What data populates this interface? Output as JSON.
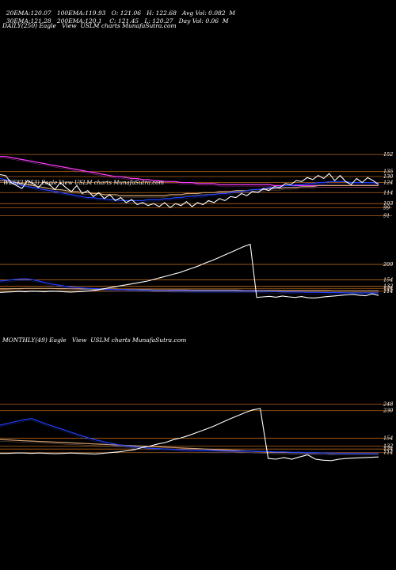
{
  "header": {
    "row1": [
      {
        "label": "20EMA:",
        "value": "120.07"
      },
      {
        "label": "100EMA:",
        "value": "119.93"
      },
      {
        "label": "O:",
        "value": "121.06"
      },
      {
        "label": "H:",
        "value": "122.68"
      },
      {
        "label": "Avg Vol:",
        "value": "0.082"
      },
      {
        "label": "",
        "value": "M"
      }
    ],
    "row2": [
      {
        "label": "30EMA:",
        "value": "121.28"
      },
      {
        "label": "200EMA:",
        "value": "120.1"
      },
      {
        "label": "C:",
        "value": "121.45"
      },
      {
        "label": "L:",
        "value": "120.27"
      },
      {
        "label": "Day Vol:",
        "value": "0.06"
      },
      {
        "label": "",
        "value": "M"
      }
    ],
    "daily_title": "DAILY(250) Eagle   View  USLM charts MunafaSutra.com",
    "weekly_title": "WEEKLY(53) Eagle   View  USLM charts MunafaSutra.com",
    "monthly_title": "MONTHLY(49) Eagle   View  USLM charts MunafaSutra.com"
  },
  "colors": {
    "background": "#000000",
    "price": "#ffffff",
    "ema_short": "#2040ff",
    "ema_mid": "#d4a373",
    "ema_long": "#ff40ff",
    "level": "#b5651d"
  },
  "chart_data": [
    {
      "type": "line",
      "title": "DAILY(250) Eagle   View  USLM charts MunafaSutra.com",
      "y_ticks": [
        "152",
        "135",
        "130",
        "124",
        "114",
        "103",
        "99",
        "91"
      ],
      "series": [
        {
          "values": [
            132,
            131,
            124,
            121,
            118,
            126,
            123,
            119,
            125,
            122,
            117,
            124,
            119,
            115,
            121,
            113,
            116,
            110,
            114,
            108,
            112,
            106,
            109,
            104,
            107,
            102,
            104,
            101,
            103,
            100,
            104,
            99,
            103,
            101,
            105,
            100,
            104,
            102,
            106,
            104,
            108,
            106,
            110,
            109,
            113,
            111,
            115,
            114,
            118,
            116,
            120,
            119,
            123,
            122,
            126,
            125,
            129,
            127,
            131,
            128,
            133,
            126,
            131,
            125,
            122,
            128,
            124,
            129,
            126,
            122
          ]
        },
        {
          "values": [
            128,
            127,
            125,
            123,
            121,
            120,
            119,
            118,
            117,
            116,
            115,
            114,
            113,
            112,
            111,
            110,
            109,
            109,
            108,
            108,
            107,
            107,
            106,
            106,
            106,
            106,
            106,
            107,
            107,
            107,
            108,
            108,
            109,
            109,
            110,
            110,
            111,
            111,
            112,
            112,
            113,
            113,
            114,
            115,
            115,
            116,
            117,
            117,
            118,
            119,
            119,
            120,
            121,
            121,
            122,
            122,
            123,
            123,
            124,
            124,
            125,
            125,
            125,
            125,
            124,
            124,
            124,
            124,
            124,
            123
          ]
        },
        {
          "values": [
            126,
            126,
            125,
            124,
            123,
            122,
            121,
            120,
            119,
            118,
            117,
            117,
            116,
            115,
            115,
            114,
            114,
            113,
            113,
            112,
            112,
            112,
            111,
            111,
            111,
            111,
            111,
            111,
            111,
            111,
            111,
            112,
            112,
            112,
            113,
            113,
            113,
            114,
            114,
            114,
            115,
            115,
            115,
            116,
            116,
            116,
            117,
            117,
            117,
            118,
            118,
            118,
            119,
            119,
            119,
            120,
            120,
            120,
            121,
            121,
            121,
            121,
            121,
            121,
            121,
            121,
            121,
            121,
            121,
            121
          ]
        },
        {
          "values": [
            150,
            150,
            149,
            148,
            147,
            146,
            145,
            144,
            143,
            142,
            141,
            140,
            139,
            138,
            137,
            136,
            135,
            134,
            133,
            132,
            131,
            130,
            130,
            129,
            128,
            128,
            127,
            127,
            126,
            126,
            125,
            125,
            125,
            124,
            124,
            124,
            123,
            123,
            123,
            123,
            122,
            122,
            122,
            122,
            122,
            122,
            122,
            122,
            122,
            122,
            121,
            121,
            121,
            121,
            121,
            121,
            121,
            121,
            121,
            121,
            121,
            121,
            121,
            121,
            121,
            121,
            121,
            121,
            121,
            121
          ]
        }
      ]
    },
    {
      "type": "line",
      "title": "WEEKLY(53) Eagle   View  USLM charts MunafaSutra.com",
      "y_ticks": [
        "209",
        "154",
        "132",
        "124",
        "114"
      ],
      "series": [
        {
          "values": [
            110,
            111,
            112,
            113,
            112,
            114,
            113,
            112,
            114,
            113,
            112,
            111,
            112,
            113,
            115,
            118,
            122,
            126,
            130,
            134,
            138,
            142,
            146,
            150,
            156,
            162,
            168,
            174,
            180,
            188,
            196,
            204,
            214,
            222,
            232,
            242,
            252,
            262,
            272,
            280,
            92,
            94,
            96,
            93,
            97,
            94,
            92,
            95,
            91,
            90,
            93,
            95,
            97,
            99,
            101,
            103,
            100,
            98,
            105,
            99
          ]
        },
        {
          "values": [
            150,
            152,
            155,
            157,
            158,
            155,
            150,
            145,
            140,
            136,
            132,
            129,
            127,
            125,
            124,
            123,
            122,
            121,
            120,
            120,
            119,
            119,
            118,
            118,
            117,
            117,
            117,
            116,
            116,
            116,
            115,
            115,
            115,
            115,
            115,
            115,
            115,
            115,
            115,
            115,
            114,
            114,
            113,
            113,
            112,
            112,
            111,
            111,
            110,
            110,
            110,
            109,
            109,
            109,
            108,
            108,
            108,
            108,
            108,
            108
          ]
        },
        {
          "values": [
            122,
            122,
            123,
            123,
            124,
            124,
            124,
            124,
            124,
            123,
            123,
            123,
            122,
            122,
            122,
            121,
            121,
            121,
            121,
            120,
            120,
            120,
            120,
            120,
            119,
            119,
            119,
            119,
            119,
            119,
            118,
            118,
            118,
            118,
            118,
            118,
            118,
            118,
            117,
            117,
            117,
            117,
            117,
            117,
            116,
            116,
            116,
            116,
            116,
            116,
            116,
            116,
            115,
            115,
            115,
            115,
            115,
            115,
            115,
            115
          ]
        }
      ]
    },
    {
      "type": "line",
      "title": "MONTHLY(49) Eagle   View  USLM charts MunafaSutra.com",
      "y_ticks": [
        "248",
        "230",
        "154",
        "132",
        "124",
        "114"
      ],
      "series": [
        {
          "values": [
            112,
            112,
            113,
            113,
            112,
            113,
            112,
            111,
            112,
            113,
            112,
            111,
            110,
            112,
            114,
            116,
            119,
            122,
            128,
            132,
            138,
            142,
            150,
            155,
            162,
            170,
            178,
            186,
            196,
            206,
            215,
            224,
            232,
            236,
            98,
            96,
            100,
            96,
            102,
            108,
            96,
            93,
            92,
            96,
            98,
            99,
            100,
            101,
            102
          ]
        },
        {
          "values": [
            190,
            195,
            200,
            205,
            208,
            200,
            192,
            185,
            178,
            170,
            163,
            156,
            150,
            145,
            140,
            136,
            133,
            130,
            128,
            126,
            125,
            124,
            123,
            122,
            121,
            121,
            120,
            120,
            119,
            119,
            118,
            118,
            118,
            117,
            117,
            116,
            116,
            115,
            115,
            114,
            114,
            113,
            113,
            112,
            112,
            112,
            112,
            112,
            112
          ]
        },
        {
          "values": [
            150,
            149,
            148,
            147,
            146,
            145,
            144,
            143,
            142,
            141,
            140,
            139,
            138,
            137,
            136,
            135,
            134,
            133,
            132,
            131,
            130,
            129,
            128,
            127,
            126,
            125,
            124,
            123,
            122,
            121,
            120,
            119,
            118,
            117,
            116,
            115,
            115,
            114,
            114,
            113,
            113,
            113,
            112,
            112,
            112,
            112,
            112,
            112,
            112
          ]
        }
      ]
    }
  ]
}
